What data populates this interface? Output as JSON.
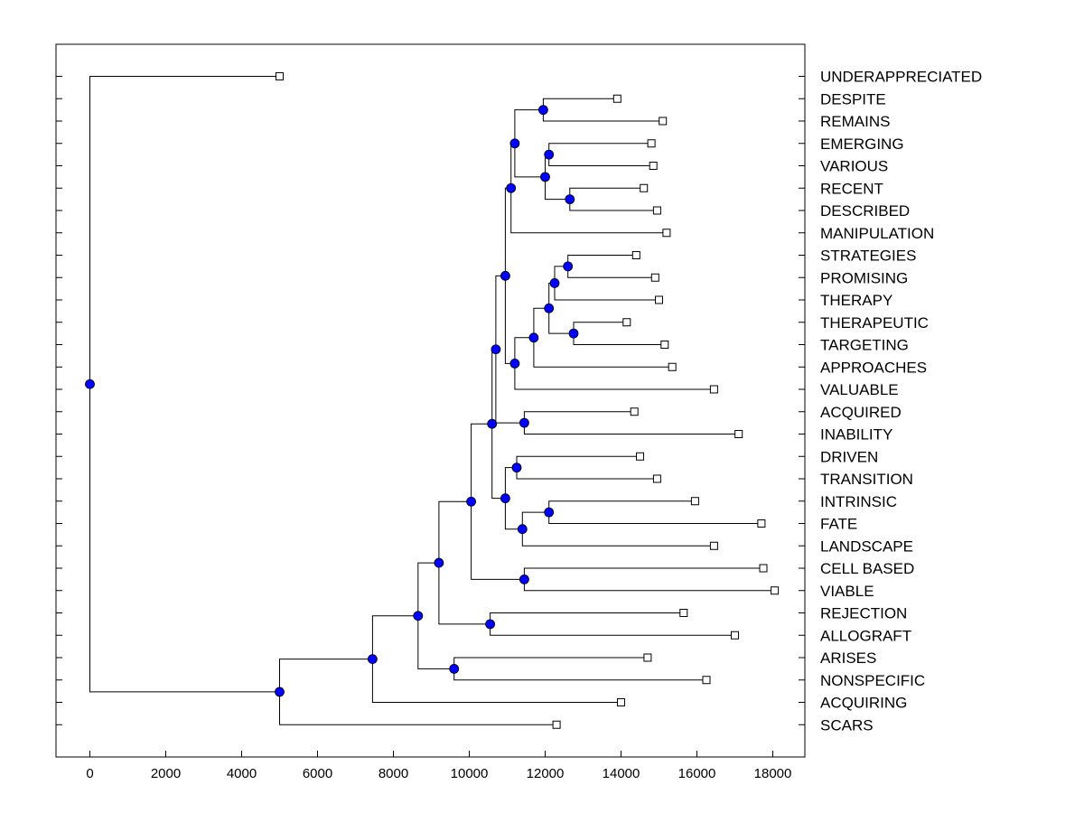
{
  "chart_data": {
    "type": "dendrogram",
    "title": "",
    "xlabel": "",
    "ylabel": "",
    "xlim": [
      -900,
      19000
    ],
    "x_ticks": [
      "0",
      "2000",
      "4000",
      "6000",
      "8000",
      "10000",
      "12000",
      "14000",
      "16000",
      "18000"
    ],
    "x_tick_values": [
      0,
      2000,
      4000,
      6000,
      8000,
      10000,
      12000,
      14000,
      16000,
      18000
    ],
    "colors": {
      "node": "#0000ff",
      "line": "#000000",
      "leaf": "#ffffff"
    },
    "leaves": [
      {
        "id": "UNDERAPPRECIATED",
        "label": "UNDERAPPRECIATED",
        "x": 5000
      },
      {
        "id": "DESPITE",
        "label": "DESPITE",
        "x": 13900
      },
      {
        "id": "REMAINS",
        "label": "REMAINS",
        "x": 15100
      },
      {
        "id": "EMERGING",
        "label": "EMERGING",
        "x": 14800
      },
      {
        "id": "VARIOUS",
        "label": "VARIOUS",
        "x": 14850
      },
      {
        "id": "RECENT",
        "label": "RECENT",
        "x": 14600
      },
      {
        "id": "DESCRIBED",
        "label": "DESCRIBED",
        "x": 14950
      },
      {
        "id": "MANIPULATION",
        "label": "MANIPULATION",
        "x": 15200
      },
      {
        "id": "STRATEGIES",
        "label": "STRATEGIES",
        "x": 14400
      },
      {
        "id": "PROMISING",
        "label": "PROMISING",
        "x": 14900
      },
      {
        "id": "THERAPY",
        "label": "THERAPY",
        "x": 15000
      },
      {
        "id": "THERAPEUTIC",
        "label": "THERAPEUTIC",
        "x": 14150
      },
      {
        "id": "TARGETING",
        "label": "TARGETING",
        "x": 15150
      },
      {
        "id": "APPROACHES",
        "label": "APPROACHES",
        "x": 15350
      },
      {
        "id": "VALUABLE",
        "label": "VALUABLE",
        "x": 16450
      },
      {
        "id": "ACQUIRED",
        "label": "ACQUIRED",
        "x": 14350
      },
      {
        "id": "INABILITY",
        "label": "INABILITY",
        "x": 17100
      },
      {
        "id": "DRIVEN",
        "label": "DRIVEN",
        "x": 14500
      },
      {
        "id": "TRANSITION",
        "label": "TRANSITION",
        "x": 14950
      },
      {
        "id": "INTRINSIC",
        "label": "INTRINSIC",
        "x": 15950
      },
      {
        "id": "FATE",
        "label": "FATE",
        "x": 17700
      },
      {
        "id": "LANDSCAPE",
        "label": "LANDSCAPE",
        "x": 16450
      },
      {
        "id": "CELL_BASED",
        "label": "CELL BASED",
        "x": 17750
      },
      {
        "id": "VIABLE",
        "label": "VIABLE",
        "x": 18050
      },
      {
        "id": "REJECTION",
        "label": "REJECTION",
        "x": 15650
      },
      {
        "id": "ALLOGRAFT",
        "label": "ALLOGRAFT",
        "x": 17000
      },
      {
        "id": "ARISES",
        "label": "ARISES",
        "x": 14700
      },
      {
        "id": "NONSPECIFIC",
        "label": "NONSPECIFIC",
        "x": 16250
      },
      {
        "id": "ACQUIRING",
        "label": "ACQUIRING",
        "x": 14000
      },
      {
        "id": "SCARS",
        "label": "SCARS",
        "x": 12300
      }
    ],
    "merges": [
      {
        "id": "n1",
        "x": 11950,
        "children": [
          "DESPITE",
          "REMAINS"
        ]
      },
      {
        "id": "n2",
        "x": 12100,
        "children": [
          "EMERGING",
          "VARIOUS"
        ]
      },
      {
        "id": "n3",
        "x": 12650,
        "children": [
          "RECENT",
          "DESCRIBED"
        ]
      },
      {
        "id": "n4",
        "x": 12000,
        "children": [
          "n2",
          "n3"
        ]
      },
      {
        "id": "n5",
        "x": 11200,
        "children": [
          "n1",
          "n4"
        ]
      },
      {
        "id": "n6",
        "x": 11100,
        "children": [
          "n5",
          "MANIPULATION"
        ]
      },
      {
        "id": "n7",
        "x": 12600,
        "children": [
          "STRATEGIES",
          "PROMISING"
        ]
      },
      {
        "id": "n8",
        "x": 12250,
        "children": [
          "n7",
          "THERAPY"
        ]
      },
      {
        "id": "n9",
        "x": 12750,
        "children": [
          "THERAPEUTIC",
          "TARGETING"
        ]
      },
      {
        "id": "n10",
        "x": 12100,
        "children": [
          "n8",
          "n9"
        ]
      },
      {
        "id": "n11",
        "x": 11700,
        "children": [
          "n10",
          "APPROACHES"
        ]
      },
      {
        "id": "n12",
        "x": 11200,
        "children": [
          "n11",
          "VALUABLE"
        ]
      },
      {
        "id": "n13",
        "x": 10950,
        "children": [
          "n6",
          "n12"
        ]
      },
      {
        "id": "n14",
        "x": 11450,
        "children": [
          "ACQUIRED",
          "INABILITY"
        ]
      },
      {
        "id": "n15",
        "x": 10700,
        "children": [
          "n13",
          "n14"
        ]
      },
      {
        "id": "n16",
        "x": 11250,
        "children": [
          "DRIVEN",
          "TRANSITION"
        ]
      },
      {
        "id": "n17",
        "x": 12100,
        "children": [
          "INTRINSIC",
          "FATE"
        ]
      },
      {
        "id": "n18",
        "x": 11400,
        "children": [
          "n17",
          "LANDSCAPE"
        ]
      },
      {
        "id": "n19",
        "x": 10950,
        "children": [
          "n16",
          "n18"
        ]
      },
      {
        "id": "n20",
        "x": 10600,
        "children": [
          "n15",
          "n19"
        ]
      },
      {
        "id": "n21",
        "x": 11450,
        "children": [
          "CELL_BASED",
          "VIABLE"
        ]
      },
      {
        "id": "n22",
        "x": 10050,
        "children": [
          "n20",
          "n21"
        ]
      },
      {
        "id": "n23",
        "x": 10550,
        "children": [
          "REJECTION",
          "ALLOGRAFT"
        ]
      },
      {
        "id": "n24",
        "x": 9200,
        "children": [
          "n22",
          "n23"
        ]
      },
      {
        "id": "n25",
        "x": 9600,
        "children": [
          "ARISES",
          "NONSPECIFIC"
        ]
      },
      {
        "id": "n26",
        "x": 8650,
        "children": [
          "n24",
          "n25"
        ]
      },
      {
        "id": "n27",
        "x": 7450,
        "children": [
          "n26",
          "ACQUIRING"
        ]
      },
      {
        "id": "n28",
        "x": 5000,
        "children": [
          "n27",
          "SCARS"
        ]
      },
      {
        "id": "root",
        "x": 0,
        "children": [
          "UNDERAPPRECIATED",
          "n28"
        ]
      }
    ]
  }
}
